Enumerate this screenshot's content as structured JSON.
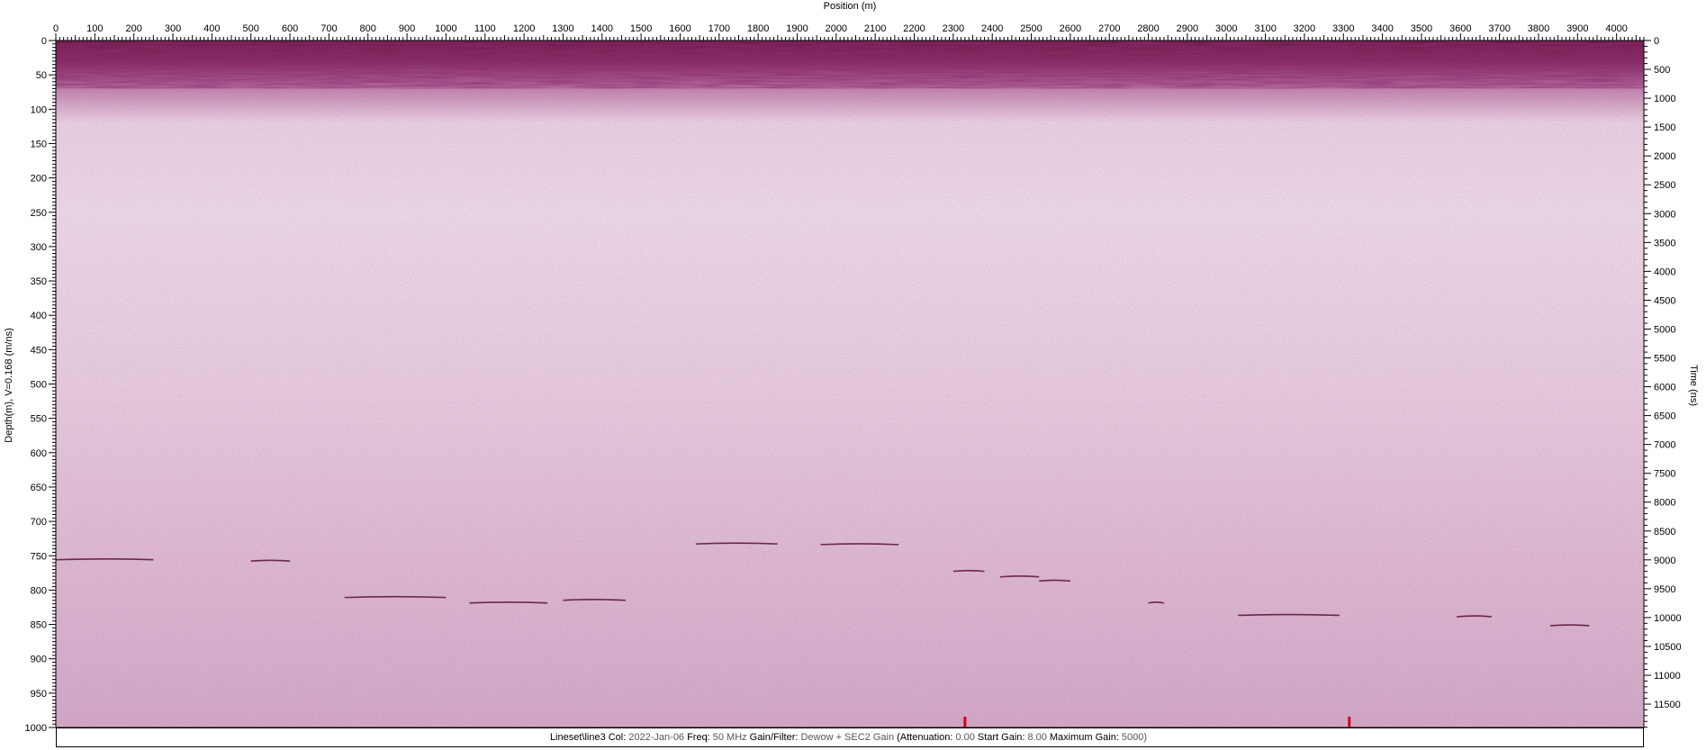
{
  "chart_data": {
    "type": "heatmap",
    "title": "",
    "xlabel": "Position (m)",
    "ylabel_left": "Depth(m), V=0.168 (m/ns)",
    "ylabel_right": "Time (ns)",
    "xlim": [
      0,
      4070
    ],
    "ylim_depth": [
      0,
      1000
    ],
    "ylim_time": [
      0,
      11905
    ],
    "x_ticks": [
      0,
      100,
      200,
      300,
      400,
      500,
      600,
      700,
      800,
      900,
      1000,
      1100,
      1200,
      1300,
      1400,
      1500,
      1600,
      1700,
      1800,
      1900,
      2000,
      2100,
      2200,
      2300,
      2400,
      2500,
      2600,
      2700,
      2800,
      2900,
      3000,
      3100,
      3200,
      3300,
      3400,
      3500,
      3600,
      3700,
      3800,
      3900,
      4000
    ],
    "depth_ticks": [
      0,
      50,
      100,
      150,
      200,
      250,
      300,
      350,
      400,
      450,
      500,
      550,
      600,
      650,
      700,
      750,
      800,
      850,
      900,
      950,
      1000
    ],
    "time_ticks": [
      0,
      500,
      1000,
      1500,
      2000,
      2500,
      3000,
      3500,
      4000,
      4500,
      5000,
      5500,
      6000,
      6500,
      7000,
      7500,
      8000,
      8500,
      9000,
      9500,
      10000,
      10500,
      11000,
      11500
    ],
    "colormap": [
      "#f7f1f4",
      "#e7cfdf",
      "#c88fb5",
      "#8a3a6e",
      "#5a0f30"
    ],
    "reflectors": [
      {
        "x0": 0,
        "x1": 250,
        "depth": 755
      },
      {
        "x0": 500,
        "x1": 600,
        "depth": 757
      },
      {
        "x0": 740,
        "x1": 1000,
        "depth": 810
      },
      {
        "x0": 1060,
        "x1": 1260,
        "depth": 818
      },
      {
        "x0": 1300,
        "x1": 1460,
        "depth": 814
      },
      {
        "x0": 1640,
        "x1": 1850,
        "depth": 732
      },
      {
        "x0": 1960,
        "x1": 2160,
        "depth": 733
      },
      {
        "x0": 2300,
        "x1": 2380,
        "depth": 772
      },
      {
        "x0": 2420,
        "x1": 2520,
        "depth": 780
      },
      {
        "x0": 2520,
        "x1": 2600,
        "depth": 786
      },
      {
        "x0": 2800,
        "x1": 2840,
        "depth": 818
      },
      {
        "x0": 3030,
        "x1": 3290,
        "depth": 836
      },
      {
        "x0": 3590,
        "x1": 3680,
        "depth": 838
      },
      {
        "x0": 3830,
        "x1": 3930,
        "depth": 851
      }
    ],
    "markers": [
      2330,
      3315
    ],
    "marker_color": "#d0021b"
  },
  "info": {
    "line": "Lineset\\line3",
    "col_label": "Col:",
    "col_value": "2022-Jan-06",
    "freq_label": "Freq:",
    "freq_value": "50 MHz",
    "gain_label": "Gain/Filter:",
    "gain_value": "Dewow + SEC2 Gain",
    "atten_label": "(Attenuation:",
    "atten_value": "0.00",
    "start_label": "Start Gain:",
    "start_value": "8.00",
    "max_label": "Maximum Gain:",
    "max_value": "5000)"
  }
}
